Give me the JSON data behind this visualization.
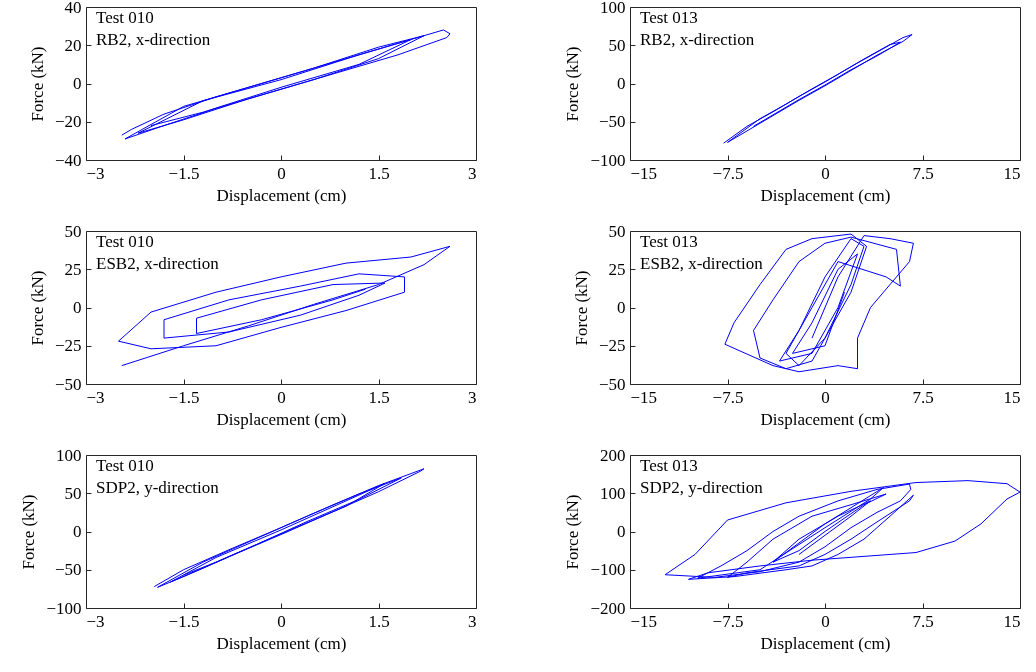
{
  "chart_data": [
    {
      "type": "line",
      "xlabel": "Displacement (cm)",
      "ylabel": "Force (kN)",
      "annotations": [
        "Test 010",
        "RB2, x-direction"
      ],
      "xlim": [
        -3,
        3
      ],
      "ylim": [
        -40,
        40
      ],
      "xticks": [
        -3,
        -1.5,
        0,
        1.5,
        3
      ],
      "yticks": [
        -40,
        -20,
        0,
        20,
        40
      ],
      "series": [
        {
          "color": "#0000ff",
          "x": [
            -2.45,
            -2.3,
            -1.8,
            -1.0,
            0,
            1.0,
            1.8,
            2.5,
            2.6,
            2.55,
            1.8,
            1.0,
            0,
            -1.0,
            -1.8,
            -2.4,
            -1.5,
            -0.5,
            0.5,
            1.5,
            2.2,
            1.5,
            0.5,
            -0.5,
            -1.5,
            -2.2,
            -1.2,
            0,
            1.2,
            2.0,
            1.2,
            0,
            -1.2,
            -2.0
          ],
          "values": [
            -27,
            -24,
            -16,
            -7,
            3,
            13,
            21,
            28,
            26,
            24,
            15,
            7,
            -3,
            -13,
            -22,
            -29,
            -12,
            -2,
            8,
            19,
            25,
            13,
            2,
            -8,
            -19,
            -26,
            -9,
            2,
            15,
            23,
            10,
            -2,
            -15,
            -22
          ]
        }
      ]
    },
    {
      "type": "line",
      "xlabel": "Displacement (cm)",
      "ylabel": "Force (kN)",
      "annotations": [
        "Test 013",
        "RB2, x-direction"
      ],
      "xlim": [
        -15,
        15
      ],
      "ylim": [
        -100,
        100
      ],
      "xticks": [
        -15,
        -7.5,
        0,
        7.5,
        15
      ],
      "yticks": [
        -100,
        -50,
        0,
        50,
        100
      ],
      "series": [
        {
          "color": "#0000ff",
          "x": [
            -7.8,
            -6,
            -4,
            -2,
            0,
            2,
            4,
            6,
            6.7,
            6,
            4,
            2,
            0,
            -2,
            -4,
            -6,
            -7.5,
            -5,
            -3,
            -1,
            1,
            3,
            5,
            5.8,
            4,
            2,
            0,
            -2,
            -4,
            -5.5
          ],
          "values": [
            -78,
            -56,
            -37,
            -17,
            2,
            22,
            41,
            60,
            64,
            55,
            37,
            17,
            -3,
            -22,
            -42,
            -62,
            -77,
            -46,
            -27,
            -7,
            12,
            32,
            51,
            54,
            36,
            18,
            -2,
            -21,
            -41,
            -56
          ]
        }
      ]
    },
    {
      "type": "line",
      "xlabel": "Displacement (cm)",
      "ylabel": "Force (kN)",
      "annotations": [
        "Test 010",
        "ESB2, x-direction"
      ],
      "xlim": [
        -3,
        3
      ],
      "ylim": [
        -50,
        50
      ],
      "xticks": [
        -3,
        -1.5,
        0,
        1.5,
        3
      ],
      "yticks": [
        -50,
        -25,
        0,
        25,
        50
      ],
      "series": [
        {
          "color": "#0000ff",
          "x": [
            -2.45,
            -1.5,
            -0.5,
            0.5,
            1.5,
            2.2,
            2.6,
            2.0,
            1.0,
            0,
            -1.0,
            -2.0,
            -2.5,
            -2.0,
            -1.0,
            0,
            1.0,
            1.9,
            1.9,
            1.2,
            0.3,
            -0.8,
            -1.8,
            -1.8,
            -0.8,
            0.3,
            1.2,
            1.6,
            0.8,
            -0.3,
            -1.3,
            -1.3,
            -0.3,
            0.8,
            1.3
          ],
          "values": [
            -38,
            -25,
            -12,
            2,
            15,
            28,
            40,
            33,
            29,
            20,
            10,
            -3,
            -22,
            -27,
            -25,
            -13,
            -2,
            10,
            20,
            22,
            14,
            5,
            -8,
            -20,
            -16,
            -5,
            8,
            16,
            15,
            5,
            -7,
            -17,
            -8,
            5,
            12
          ]
        }
      ]
    },
    {
      "type": "line",
      "xlabel": "Displacement (cm)",
      "ylabel": "Force (kN)",
      "annotations": [
        "Test 013",
        "ESB2, x-direction"
      ],
      "xlim": [
        -15,
        15
      ],
      "ylim": [
        -50,
        50
      ],
      "xticks": [
        -15,
        -7.5,
        0,
        7.5,
        15
      ],
      "yticks": [
        -50,
        -25,
        0,
        25,
        50
      ],
      "series": [
        {
          "color": "#0000ff",
          "x": [
            -1,
            1,
            3,
            5,
            6.8,
            6.5,
            4.5,
            3.5,
            2.5,
            2.5,
            1,
            -2,
            -4,
            -7.7,
            -7,
            -5,
            -3,
            -1,
            2,
            3.2,
            2,
            0,
            -1,
            -3,
            -5,
            -5.5,
            -4,
            -2,
            0,
            2,
            5.5,
            5.8,
            4.7,
            1,
            -1,
            -3,
            -2,
            0,
            2,
            3,
            2,
            0,
            -2,
            -3.5,
            -1,
            1,
            2.5,
            1,
            -1,
            -2.5,
            0,
            1.5
          ],
          "values": [
            -20,
            20,
            47,
            45,
            42,
            30,
            10,
            0,
            -20,
            -40,
            -38,
            -42,
            -38,
            -24,
            -10,
            15,
            38,
            45,
            48,
            40,
            10,
            -20,
            -35,
            -40,
            -33,
            -15,
            5,
            30,
            42,
            46,
            38,
            14,
            20,
            30,
            0,
            -30,
            -38,
            -20,
            15,
            40,
            45,
            20,
            -15,
            -35,
            -30,
            0,
            35,
            25,
            -10,
            -30,
            -25,
            10
          ]
        }
      ]
    },
    {
      "type": "line",
      "xlabel": "Displacement (cm)",
      "ylabel": "Force (kN)",
      "annotations": [
        "Test 010",
        "SDP2, y-direction"
      ],
      "xlim": [
        -3,
        3
      ],
      "ylim": [
        -100,
        100
      ],
      "xticks": [
        -3,
        -1.5,
        0,
        1.5,
        3
      ],
      "yticks": [
        -100,
        -50,
        0,
        50,
        100
      ],
      "series": [
        {
          "color": "#0000ff",
          "x": [
            -1.95,
            -1.5,
            -0.75,
            0,
            0.75,
            1.5,
            2.2,
            2.15,
            1.5,
            0.75,
            0,
            -0.75,
            -1.5,
            -1.9,
            -1.2,
            -0.4,
            0.4,
            1.2,
            1.85,
            1.2,
            0.4,
            -0.4,
            -1.2,
            -1.7,
            -1.0,
            0,
            1.0,
            1.6,
            1.0,
            0,
            -1.0,
            -1.5
          ],
          "values": [
            -72,
            -50,
            -22,
            5,
            33,
            60,
            82,
            79,
            52,
            24,
            -4,
            -31,
            -59,
            -73,
            -40,
            -10,
            20,
            49,
            70,
            42,
            13,
            -18,
            -48,
            -66,
            -34,
            2,
            40,
            63,
            33,
            -3,
            -40,
            -57
          ]
        }
      ]
    },
    {
      "type": "line",
      "xlabel": "Displacement (cm)",
      "ylabel": "Force (kN)",
      "annotations": [
        "Test 013",
        "SDP2, y-direction"
      ],
      "xlim": [
        -15,
        15
      ],
      "ylim": [
        -200,
        200
      ],
      "xticks": [
        -15,
        -7.5,
        0,
        7.5,
        15
      ],
      "yticks": [
        -200,
        -100,
        0,
        100,
        200
      ],
      "series": [
        {
          "color": "#0000ff",
          "x": [
            -4,
            0,
            4.5,
            3.5,
            0,
            -5,
            -9.8,
            -8,
            -6,
            -4,
            -2,
            1,
            4,
            6.5,
            6.6,
            5.8,
            4,
            2,
            0,
            -2,
            -5,
            -8.5,
            -12.3,
            -10,
            -7.5,
            -3,
            2,
            7,
            11,
            14,
            15,
            14,
            12,
            10,
            7,
            3,
            -1,
            -5,
            -9,
            -10.5,
            -7,
            -3,
            -1,
            1,
            3,
            5,
            6.8,
            6.5,
            4,
            2,
            0,
            -2,
            -6,
            -7.5,
            -6,
            -4,
            -1,
            2,
            4.7,
            3,
            0,
            -2,
            -4,
            -2,
            1,
            3.5,
            2,
            0,
            -2
          ],
          "values": [
            -80,
            20,
            115,
            85,
            10,
            -100,
            -122,
            -90,
            -50,
            0,
            40,
            80,
            110,
            124,
            110,
            80,
            50,
            10,
            -40,
            -80,
            -105,
            -120,
            -113,
            -60,
            30,
            75,
            105,
            128,
            133,
            125,
            103,
            85,
            20,
            -25,
            -55,
            -65,
            -75,
            -90,
            -108,
            -125,
            -118,
            -100,
            -90,
            -60,
            -20,
            40,
            95,
            80,
            25,
            -20,
            -60,
            -90,
            -108,
            -120,
            -80,
            -20,
            40,
            70,
            98,
            70,
            0,
            -50,
            -80,
            -20,
            40,
            80,
            40,
            -10,
            -60
          ]
        }
      ]
    }
  ]
}
